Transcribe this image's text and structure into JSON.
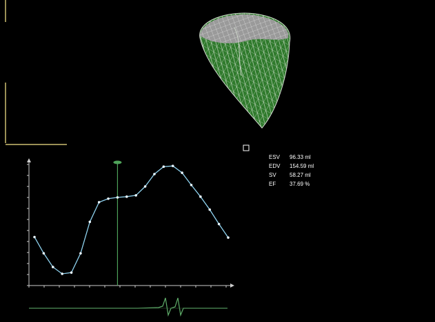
{
  "metrics": [
    {
      "label": "ESV",
      "value": "96.33 ml"
    },
    {
      "label": "EDV",
      "value": "154.59 ml"
    },
    {
      "label": "SV",
      "value": "58.27 ml"
    },
    {
      "label": "EF",
      "value": "37.69 %"
    }
  ],
  "chart_data": {
    "type": "line",
    "x": [
      1,
      2,
      3,
      4,
      5,
      6,
      7,
      8,
      9,
      10,
      11,
      12,
      13,
      14,
      15,
      16,
      17,
      18,
      19,
      20,
      21,
      22
    ],
    "series": [
      {
        "color": "#8fd3f0",
        "values": [
          116.2,
          107.4,
          100.0,
          96.33,
          97.0,
          107.4,
          124.4,
          135.0,
          136.9,
          137.6,
          138.0,
          138.7,
          143.5,
          150.2,
          154.2,
          154.59,
          150.9,
          144.3,
          138.0,
          131.0,
          123.2,
          115.9
        ]
      }
    ],
    "xlim": [
      0.4,
      22.3
    ],
    "ylim": [
      90,
      158
    ],
    "marker_x": 10
  }
}
